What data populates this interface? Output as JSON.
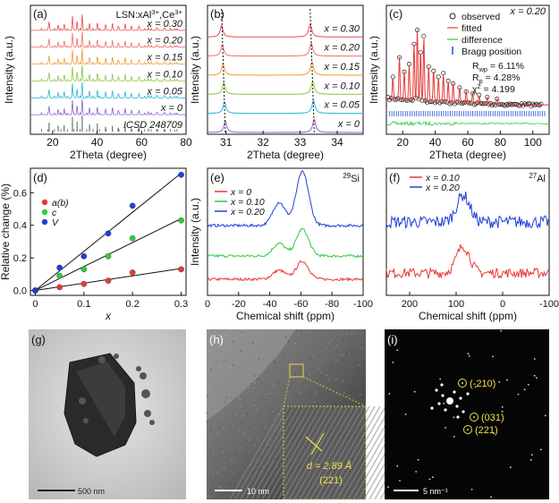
{
  "figure": {
    "panels": [
      "(a)",
      "(b)",
      "(c)",
      "(d)",
      "(e)",
      "(f)",
      "(g)",
      "(h)",
      "(i)"
    ]
  },
  "chart_data": [
    {
      "id": "a",
      "type": "line",
      "label": "(a)",
      "title": "LSN:xAl3+,Ce3+",
      "title_parts": [
        "LSN:xAl",
        "3+",
        ",Ce",
        "3+"
      ],
      "xlabel": "2Theta (degree)",
      "ylabel": "Intensity (a.u.)",
      "xlim": [
        10,
        80
      ],
      "xticks": [
        20,
        40,
        60,
        80
      ],
      "series": [
        {
          "name": "x = 0.30",
          "color": "#e8494f"
        },
        {
          "name": "x = 0.20",
          "color": "#ef6f6f"
        },
        {
          "name": "x = 0.15",
          "color": "#f29a3a"
        },
        {
          "name": "x = 0.10",
          "color": "#8cc63f"
        },
        {
          "name": "x = 0.05",
          "color": "#29b6d8"
        },
        {
          "name": "x = 0",
          "color": "#8e5fd0"
        },
        {
          "name": "ICSD 248709",
          "color": "#555555"
        }
      ],
      "peaks": [
        18.4,
        22.5,
        25.2,
        28.9,
        31.0,
        33.3,
        36.6,
        40.1,
        43.8,
        46.9,
        49.5,
        52.6,
        55.4,
        58.9,
        63.1,
        66.8,
        70.5,
        74.9
      ]
    },
    {
      "id": "b",
      "type": "line",
      "label": "(b)",
      "xlabel": "2Theta (degree)",
      "ylabel": "Intensity (a.u.)",
      "xlim": [
        30.5,
        34.7
      ],
      "xticks": [
        31,
        32,
        33,
        34
      ],
      "series": [
        {
          "name": "x = 0.30",
          "color": "#e8494f",
          "peak1": 30.88,
          "peak2": 33.27
        },
        {
          "name": "x = 0.20",
          "color": "#ef6f6f",
          "peak1": 30.9,
          "peak2": 33.3
        },
        {
          "name": "x = 0.15",
          "color": "#f29a3a",
          "peak1": 30.92,
          "peak2": 33.32
        },
        {
          "name": "x = 0.10",
          "color": "#8cc63f",
          "peak1": 30.94,
          "peak2": 33.34
        },
        {
          "name": "x = 0.05",
          "color": "#29b6d8",
          "peak1": 30.96,
          "peak2": 33.36
        },
        {
          "name": "x = 0",
          "color": "#8e5fd0",
          "peak1": 30.98,
          "peak2": 33.38
        }
      ]
    },
    {
      "id": "c",
      "type": "scatter",
      "label": "(c)",
      "title": "x = 0.20",
      "xlabel": "2Theta (degree)",
      "ylabel": "Intensity (a.u.)",
      "xlim": [
        10,
        110
      ],
      "xticks": [
        20,
        40,
        60,
        80,
        100
      ],
      "legend": [
        "observed",
        "fitted",
        "difference",
        "Bragg position"
      ],
      "stats": [
        "Rwp = 6.11%",
        "Rp = 4.28%",
        "χ2 = 4.199"
      ],
      "stats_parts": [
        [
          "R",
          "wp",
          " = 6.11%"
        ],
        [
          "R",
          "p",
          " = 4.28%"
        ],
        [
          "χ",
          "2",
          " = 4.199"
        ]
      ],
      "colors": {
        "observed": "#222222",
        "fitted": "#e53935",
        "difference": "#2ecc40",
        "bragg": "#1f4fd8"
      }
    },
    {
      "id": "d",
      "type": "scatter",
      "label": "(d)",
      "xlabel": "x",
      "ylabel": "Relative change (%)",
      "xlim": [
        -0.01,
        0.31
      ],
      "ylim": [
        -0.03,
        0.75
      ],
      "xticks": [
        0,
        0.1,
        0.2,
        0.3
      ],
      "yticks": [
        0,
        0.2,
        0.4,
        0.6
      ],
      "x": [
        0,
        0.05,
        0.1,
        0.15,
        0.2,
        0.3
      ],
      "series": [
        {
          "name": "a(b)",
          "color": "#e53935",
          "values": [
            0,
            0.02,
            0.04,
            0.06,
            0.11,
            0.13
          ],
          "fit_slope": 0.45
        },
        {
          "name": "c",
          "color": "#2ecc40",
          "values": [
            0,
            0.09,
            0.13,
            0.21,
            0.32,
            0.43
          ],
          "fit_slope": 1.47
        },
        {
          "name": "V",
          "color": "#1f3fd8",
          "values": [
            0,
            0.14,
            0.21,
            0.35,
            0.52,
            0.71
          ],
          "fit_slope": 2.4
        }
      ]
    },
    {
      "id": "e",
      "type": "line",
      "label": "(e)",
      "nucleus": "29Si",
      "nucleus_parts": [
        "29",
        "Si"
      ],
      "xlabel": "Chemical shift (ppm)",
      "ylabel": "Intensity (a.u.)",
      "xlim": [
        0,
        -100
      ],
      "xticks": [
        0,
        -20,
        -40,
        -60,
        -80,
        -100
      ],
      "series": [
        {
          "name": "x = 0",
          "color": "#e53935"
        },
        {
          "name": "x = 0.10",
          "color": "#2ecc40"
        },
        {
          "name": "x = 0.20",
          "color": "#1f3fd8"
        }
      ]
    },
    {
      "id": "f",
      "type": "line",
      "label": "(f)",
      "nucleus": "27Al",
      "nucleus_parts": [
        "27",
        "Al"
      ],
      "xlabel": "Chemical shift (ppm)",
      "xlim": [
        250,
        -100
      ],
      "xticks": [
        200,
        100,
        0,
        -100
      ],
      "series": [
        {
          "name": "x = 0.10",
          "color": "#e53935"
        },
        {
          "name": "x = 0.20",
          "color": "#1f3fd8"
        }
      ]
    }
  ],
  "images": {
    "g": {
      "label": "(g)",
      "scale": "500 nm"
    },
    "h": {
      "label": "(h)",
      "scale": "10 nm",
      "d_spacing": "d = 2.89 Å",
      "plane": "(221)"
    },
    "i": {
      "label": "(i)",
      "scale": "5 nm⁻¹",
      "spots": [
        "(-210)",
        "(031)",
        "(221)"
      ]
    }
  }
}
